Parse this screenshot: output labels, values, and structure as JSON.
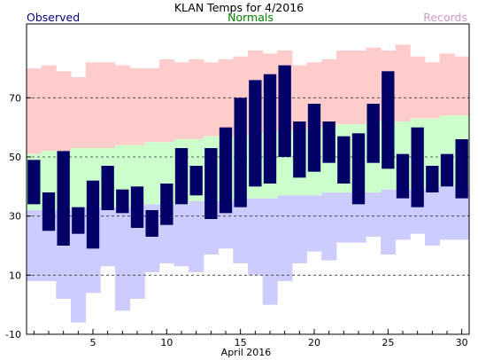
{
  "chart_data": {
    "type": "bar",
    "title": "KLAN Temps for 4/2016",
    "xlabel": "April 2016",
    "ylabel": "",
    "ylim": [
      -10,
      95
    ],
    "xlim": [
      0.5,
      30.5
    ],
    "grid": "dashed horizontal lines at 10, 30, 50, 70",
    "y_ticks": [
      -10,
      10,
      30,
      50,
      70
    ],
    "x_ticks": [
      5,
      10,
      15,
      20,
      25,
      30
    ],
    "legend": {
      "observed": "Observed",
      "normals": "Normals",
      "records": "Records"
    },
    "colors": {
      "observed": "#000066",
      "normals": "#ccffcc",
      "record_high": "#ffcccc",
      "record_low": "#ccccff",
      "legend_observed": "#000080",
      "legend_normals": "#008000",
      "legend_records": "#cc99cc",
      "grid": "#333333"
    },
    "days": [
      1,
      2,
      3,
      4,
      5,
      6,
      7,
      8,
      9,
      10,
      11,
      12,
      13,
      14,
      15,
      16,
      17,
      18,
      19,
      20,
      21,
      22,
      23,
      24,
      25,
      26,
      27,
      28,
      29,
      30
    ],
    "series": [
      {
        "name": "Observed",
        "type": "range",
        "high": [
          49,
          38,
          52,
          33,
          42,
          47,
          39,
          40,
          32,
          41,
          53,
          47,
          53,
          60,
          70,
          76,
          78,
          81,
          62,
          68,
          62,
          57,
          58,
          68,
          79,
          51,
          60,
          47,
          51,
          56
        ],
        "low": [
          34,
          25,
          20,
          24,
          19,
          32,
          31,
          26,
          23,
          27,
          34,
          37,
          29,
          31,
          33,
          40,
          41,
          50,
          43,
          45,
          48,
          41,
          34,
          48,
          46,
          36,
          33,
          38,
          40,
          36
        ]
      },
      {
        "name": "Normals",
        "type": "band",
        "high": [
          51,
          52,
          52,
          53,
          53,
          53,
          54,
          54,
          55,
          55,
          56,
          56,
          57,
          57,
          57,
          58,
          58,
          59,
          59,
          60,
          60,
          61,
          61,
          62,
          62,
          62,
          63,
          63,
          64,
          64
        ],
        "low": [
          32,
          32,
          32,
          33,
          33,
          33,
          33,
          34,
          34,
          34,
          34,
          35,
          35,
          35,
          36,
          36,
          36,
          37,
          37,
          37,
          38,
          38,
          38,
          38,
          39,
          39,
          39,
          40,
          40,
          40
        ]
      },
      {
        "name": "Records",
        "type": "band",
        "high": [
          80,
          81,
          79,
          77,
          82,
          82,
          81,
          80,
          80,
          83,
          82,
          83,
          82,
          83,
          84,
          86,
          85,
          86,
          81,
          82,
          83,
          86,
          86,
          87,
          86,
          88,
          84,
          82,
          85,
          84
        ],
        "low": [
          8,
          8,
          2,
          -6,
          4,
          13,
          -2,
          2,
          11,
          14,
          13,
          11,
          17,
          19,
          14,
          10,
          0,
          8,
          14,
          18,
          15,
          21,
          21,
          23,
          17,
          22,
          24,
          20,
          22,
          22
        ]
      }
    ]
  }
}
